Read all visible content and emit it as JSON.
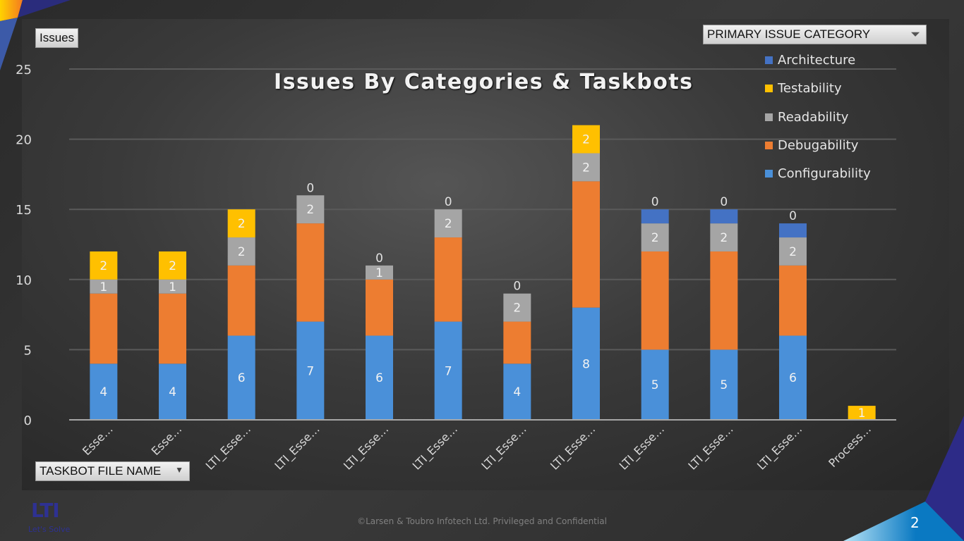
{
  "chart_data": {
    "type": "bar",
    "stacked": true,
    "title": "Issues By Categories & Taskbots",
    "ylabel": "Issues",
    "xlabel": "TASKBOT FILE NAME",
    "ylim": [
      0,
      25
    ],
    "yticks": [
      0,
      5,
      10,
      15,
      20,
      25
    ],
    "grid": true,
    "legend_title": "PRIMARY ISSUE CATEGORY",
    "legend_position": "top-right",
    "categories": [
      "Esse…",
      "Esse…",
      "LTI_Esse…",
      "LTI_Esse…",
      "LTI_Esse…",
      "LTI_Esse…",
      "LTI_Esse…",
      "LTI_Esse…",
      "LTI_Esse…",
      "LTI_Esse…",
      "LTI_Esse…",
      "Process…"
    ],
    "series": [
      {
        "name": "Configurability",
        "color": "#4a90d9",
        "values": [
          4,
          4,
          6,
          7,
          6,
          7,
          4,
          8,
          5,
          5,
          6,
          0
        ]
      },
      {
        "name": "Debugability",
        "color": "#ed7d31",
        "values": [
          5,
          5,
          5,
          7,
          4,
          6,
          3,
          9,
          7,
          7,
          5,
          0
        ]
      },
      {
        "name": "Readability",
        "color": "#a5a5a5",
        "values": [
          1,
          1,
          2,
          2,
          1,
          2,
          2,
          2,
          2,
          2,
          2,
          0
        ]
      },
      {
        "name": "Testability",
        "color": "#ffc000",
        "values": [
          2,
          2,
          2,
          0,
          0,
          0,
          0,
          2,
          0,
          0,
          0,
          1
        ]
      },
      {
        "name": "Architecture",
        "color": "#4472c4",
        "values": [
          0,
          0,
          0,
          0,
          0,
          0,
          0,
          0,
          1,
          1,
          1,
          0
        ]
      }
    ]
  },
  "footer": "©Larsen & Toubro Infotech Ltd. Privileged and Confidential",
  "page_number": "2",
  "logo": "LTI",
  "tagline": "Let's Solve"
}
